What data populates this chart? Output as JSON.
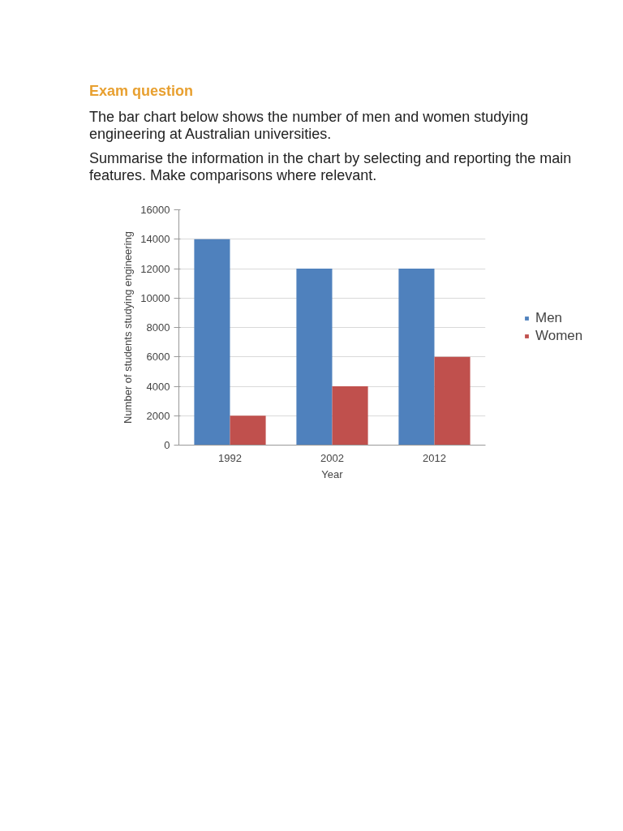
{
  "chart_data": {
    "type": "bar",
    "title": "Exam question",
    "subtitle": "The bar chart below shows the number of men and women studying engineering at Australian universities.",
    "annotations": [
      "Summarise the information in the chart by selecting and reporting the main features. Make comparisons where relevant."
    ],
    "xlabel": "Year",
    "ylabel": "Number of students studying engineering",
    "categories": [
      "1992",
      "2002",
      "2012"
    ],
    "series": [
      {
        "name": "Men",
        "color": "#4f81bd",
        "values": [
          14000,
          12000,
          12000
        ]
      },
      {
        "name": "Women",
        "color": "#c0504d",
        "values": [
          2000,
          4000,
          6000
        ]
      }
    ],
    "ylim": [
      0,
      16000
    ],
    "yticks": [
      0,
      2000,
      4000,
      6000,
      8000,
      10000,
      12000,
      14000,
      16000
    ],
    "grid": "y",
    "legend": "right"
  }
}
